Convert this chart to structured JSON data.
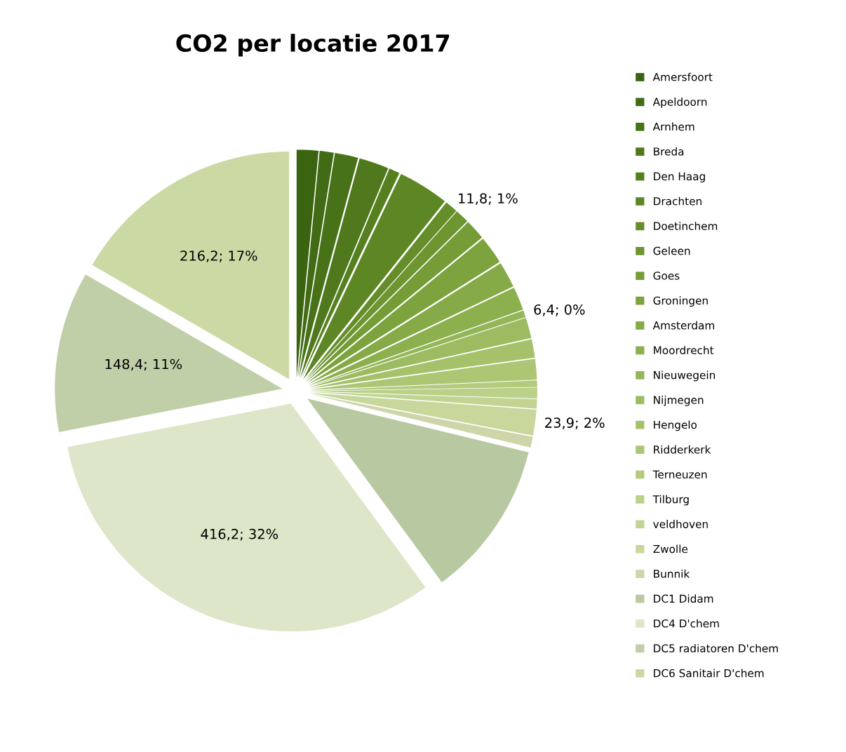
{
  "chart_data": {
    "type": "pie",
    "title": "CO2 per locatie 2017",
    "categories": [
      "Amersfoort",
      "Apeldoorn",
      "Arnhem",
      "Breda",
      "Den Haag",
      "Drachten",
      "Doetinchem",
      "Geleen",
      "Goes",
      "Groningen",
      "Amsterdam",
      "Moordrecht",
      "Nieuwegein",
      "Nijmegen",
      "Hengelo",
      "Ridderkerk",
      "Terneuzen",
      "Tilburg",
      "veldhoven",
      "Zwolle",
      "Bunnik",
      "DC1 Didam",
      "DC4 D'chem",
      "DC5 radiatoren D'chem",
      "DC6 Sanitair D'chem"
    ],
    "values": [
      20,
      13,
      21.5,
      27.5,
      10,
      47,
      11.8,
      13,
      19,
      26,
      24,
      21.5,
      6.4,
      19,
      17,
      19,
      6,
      10,
      8.6,
      23.9,
      10,
      145,
      416.2,
      148.4,
      216.2
    ],
    "value_labels": [
      null,
      null,
      null,
      null,
      null,
      null,
      "11,8; 1%",
      null,
      null,
      null,
      null,
      null,
      "6,4; 0%",
      null,
      null,
      null,
      null,
      null,
      null,
      "23,9; 2%",
      null,
      null,
      "416,2; 32%",
      "148,4; 11%",
      "216,2; 17%"
    ],
    "colors": [
      "#3a6410",
      "#416b14",
      "#487218",
      "#4f791c",
      "#568020",
      "#5d8724",
      "#658e2a",
      "#6d9530",
      "#759c37",
      "#7da33f",
      "#85aa47",
      "#8db04f",
      "#95b658",
      "#9dbc61",
      "#a5c16a",
      "#adc674",
      "#b4cb7e",
      "#bbd088",
      "#c2d492",
      "#c8d89c",
      "#ced5a8",
      "#b8c8a0",
      "#dde6c8",
      "#c0cfa8",
      "#cbd9a4"
    ],
    "legend": "right"
  }
}
